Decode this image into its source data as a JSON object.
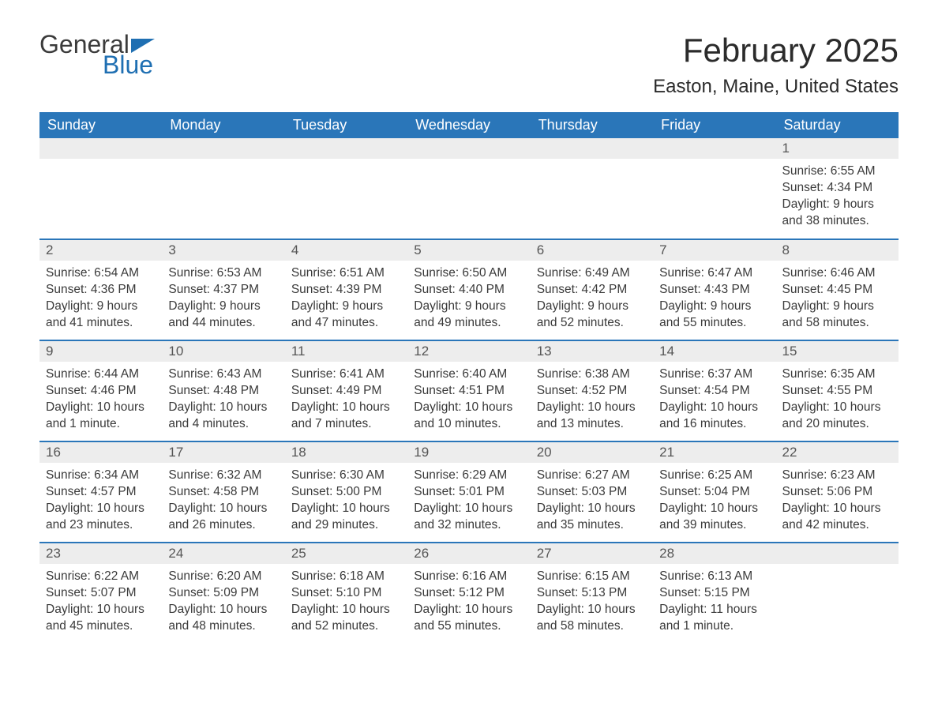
{
  "logo": {
    "text1": "General",
    "text2": "Blue"
  },
  "title": "February 2025",
  "location": "Easton, Maine, United States",
  "colors": {
    "header_bg": "#2a76b9",
    "header_text": "#ffffff",
    "daynum_bg": "#ededed",
    "row_border": "#2a76b9",
    "body_text": "#3a3a3a",
    "page_bg": "#ffffff",
    "logo_blue": "#1f6fb2"
  },
  "typography": {
    "title_fontsize": 42,
    "location_fontsize": 24,
    "header_fontsize": 18,
    "daynum_fontsize": 17,
    "body_fontsize": 15.5,
    "font_family": "Arial"
  },
  "weekdays": [
    "Sunday",
    "Monday",
    "Tuesday",
    "Wednesday",
    "Thursday",
    "Friday",
    "Saturday"
  ],
  "weeks": [
    [
      null,
      null,
      null,
      null,
      null,
      null,
      {
        "d": "1",
        "sr": "Sunrise: 6:55 AM",
        "ss": "Sunset: 4:34 PM",
        "dl": "Daylight: 9 hours and 38 minutes."
      }
    ],
    [
      {
        "d": "2",
        "sr": "Sunrise: 6:54 AM",
        "ss": "Sunset: 4:36 PM",
        "dl": "Daylight: 9 hours and 41 minutes."
      },
      {
        "d": "3",
        "sr": "Sunrise: 6:53 AM",
        "ss": "Sunset: 4:37 PM",
        "dl": "Daylight: 9 hours and 44 minutes."
      },
      {
        "d": "4",
        "sr": "Sunrise: 6:51 AM",
        "ss": "Sunset: 4:39 PM",
        "dl": "Daylight: 9 hours and 47 minutes."
      },
      {
        "d": "5",
        "sr": "Sunrise: 6:50 AM",
        "ss": "Sunset: 4:40 PM",
        "dl": "Daylight: 9 hours and 49 minutes."
      },
      {
        "d": "6",
        "sr": "Sunrise: 6:49 AM",
        "ss": "Sunset: 4:42 PM",
        "dl": "Daylight: 9 hours and 52 minutes."
      },
      {
        "d": "7",
        "sr": "Sunrise: 6:47 AM",
        "ss": "Sunset: 4:43 PM",
        "dl": "Daylight: 9 hours and 55 minutes."
      },
      {
        "d": "8",
        "sr": "Sunrise: 6:46 AM",
        "ss": "Sunset: 4:45 PM",
        "dl": "Daylight: 9 hours and 58 minutes."
      }
    ],
    [
      {
        "d": "9",
        "sr": "Sunrise: 6:44 AM",
        "ss": "Sunset: 4:46 PM",
        "dl": "Daylight: 10 hours and 1 minute."
      },
      {
        "d": "10",
        "sr": "Sunrise: 6:43 AM",
        "ss": "Sunset: 4:48 PM",
        "dl": "Daylight: 10 hours and 4 minutes."
      },
      {
        "d": "11",
        "sr": "Sunrise: 6:41 AM",
        "ss": "Sunset: 4:49 PM",
        "dl": "Daylight: 10 hours and 7 minutes."
      },
      {
        "d": "12",
        "sr": "Sunrise: 6:40 AM",
        "ss": "Sunset: 4:51 PM",
        "dl": "Daylight: 10 hours and 10 minutes."
      },
      {
        "d": "13",
        "sr": "Sunrise: 6:38 AM",
        "ss": "Sunset: 4:52 PM",
        "dl": "Daylight: 10 hours and 13 minutes."
      },
      {
        "d": "14",
        "sr": "Sunrise: 6:37 AM",
        "ss": "Sunset: 4:54 PM",
        "dl": "Daylight: 10 hours and 16 minutes."
      },
      {
        "d": "15",
        "sr": "Sunrise: 6:35 AM",
        "ss": "Sunset: 4:55 PM",
        "dl": "Daylight: 10 hours and 20 minutes."
      }
    ],
    [
      {
        "d": "16",
        "sr": "Sunrise: 6:34 AM",
        "ss": "Sunset: 4:57 PM",
        "dl": "Daylight: 10 hours and 23 minutes."
      },
      {
        "d": "17",
        "sr": "Sunrise: 6:32 AM",
        "ss": "Sunset: 4:58 PM",
        "dl": "Daylight: 10 hours and 26 minutes."
      },
      {
        "d": "18",
        "sr": "Sunrise: 6:30 AM",
        "ss": "Sunset: 5:00 PM",
        "dl": "Daylight: 10 hours and 29 minutes."
      },
      {
        "d": "19",
        "sr": "Sunrise: 6:29 AM",
        "ss": "Sunset: 5:01 PM",
        "dl": "Daylight: 10 hours and 32 minutes."
      },
      {
        "d": "20",
        "sr": "Sunrise: 6:27 AM",
        "ss": "Sunset: 5:03 PM",
        "dl": "Daylight: 10 hours and 35 minutes."
      },
      {
        "d": "21",
        "sr": "Sunrise: 6:25 AM",
        "ss": "Sunset: 5:04 PM",
        "dl": "Daylight: 10 hours and 39 minutes."
      },
      {
        "d": "22",
        "sr": "Sunrise: 6:23 AM",
        "ss": "Sunset: 5:06 PM",
        "dl": "Daylight: 10 hours and 42 minutes."
      }
    ],
    [
      {
        "d": "23",
        "sr": "Sunrise: 6:22 AM",
        "ss": "Sunset: 5:07 PM",
        "dl": "Daylight: 10 hours and 45 minutes."
      },
      {
        "d": "24",
        "sr": "Sunrise: 6:20 AM",
        "ss": "Sunset: 5:09 PM",
        "dl": "Daylight: 10 hours and 48 minutes."
      },
      {
        "d": "25",
        "sr": "Sunrise: 6:18 AM",
        "ss": "Sunset: 5:10 PM",
        "dl": "Daylight: 10 hours and 52 minutes."
      },
      {
        "d": "26",
        "sr": "Sunrise: 6:16 AM",
        "ss": "Sunset: 5:12 PM",
        "dl": "Daylight: 10 hours and 55 minutes."
      },
      {
        "d": "27",
        "sr": "Sunrise: 6:15 AM",
        "ss": "Sunset: 5:13 PM",
        "dl": "Daylight: 10 hours and 58 minutes."
      },
      {
        "d": "28",
        "sr": "Sunrise: 6:13 AM",
        "ss": "Sunset: 5:15 PM",
        "dl": "Daylight: 11 hours and 1 minute."
      },
      null
    ]
  ]
}
